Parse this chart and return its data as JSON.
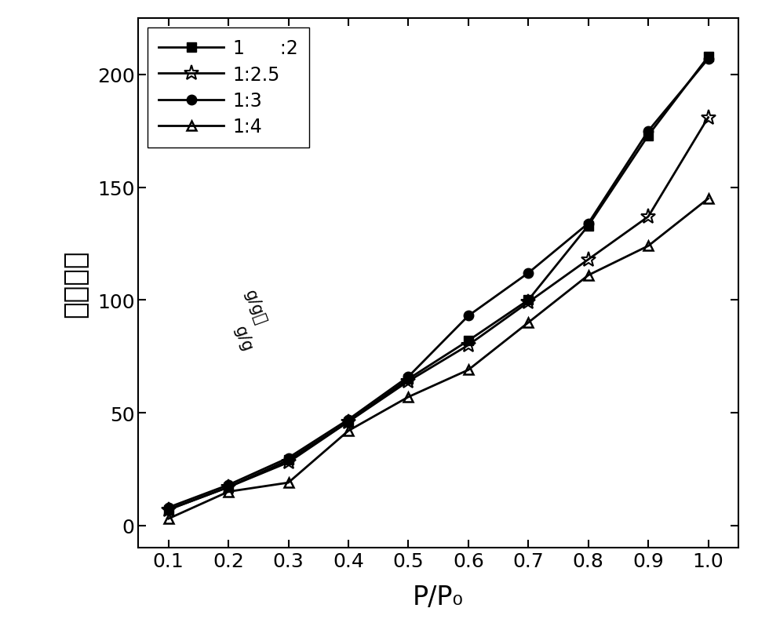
{
  "x": [
    0.1,
    0.2,
    0.3,
    0.4,
    0.5,
    0.6,
    0.7,
    0.8,
    0.9,
    1.0
  ],
  "series_1_2": [
    7,
    17,
    29,
    46,
    65,
    82,
    100,
    133,
    173,
    208
  ],
  "series_1_2_label": "1      :2",
  "series_1_25": [
    7,
    17,
    28,
    46,
    64,
    80,
    99,
    118,
    137,
    181
  ],
  "series_1_25_label": "1:2.5",
  "series_1_3": [
    8,
    18,
    30,
    47,
    66,
    93,
    112,
    134,
    175,
    207
  ],
  "series_1_3_label": "1:3",
  "series_1_4": [
    3,
    15,
    19,
    42,
    57,
    69,
    90,
    111,
    124,
    145
  ],
  "series_1_4_label": "1:4",
  "xlabel": "P/P₀",
  "ylabel_chinese": "吸收量（",
  "ylabel_unit_text": "g/g",
  "ylabel_close": "）",
  "xlim": [
    0.05,
    1.05
  ],
  "ylim": [
    -10,
    225
  ],
  "xticks": [
    0.1,
    0.2,
    0.3,
    0.4,
    0.5,
    0.6,
    0.7,
    0.8,
    0.9,
    1.0
  ],
  "yticks": [
    0,
    50,
    100,
    150,
    200
  ],
  "line_color": "#000000",
  "background_color": "#ffffff",
  "xlabel_fontsize": 24,
  "ylabel_fontsize": 26,
  "tick_fontsize": 18,
  "legend_fontsize": 17
}
